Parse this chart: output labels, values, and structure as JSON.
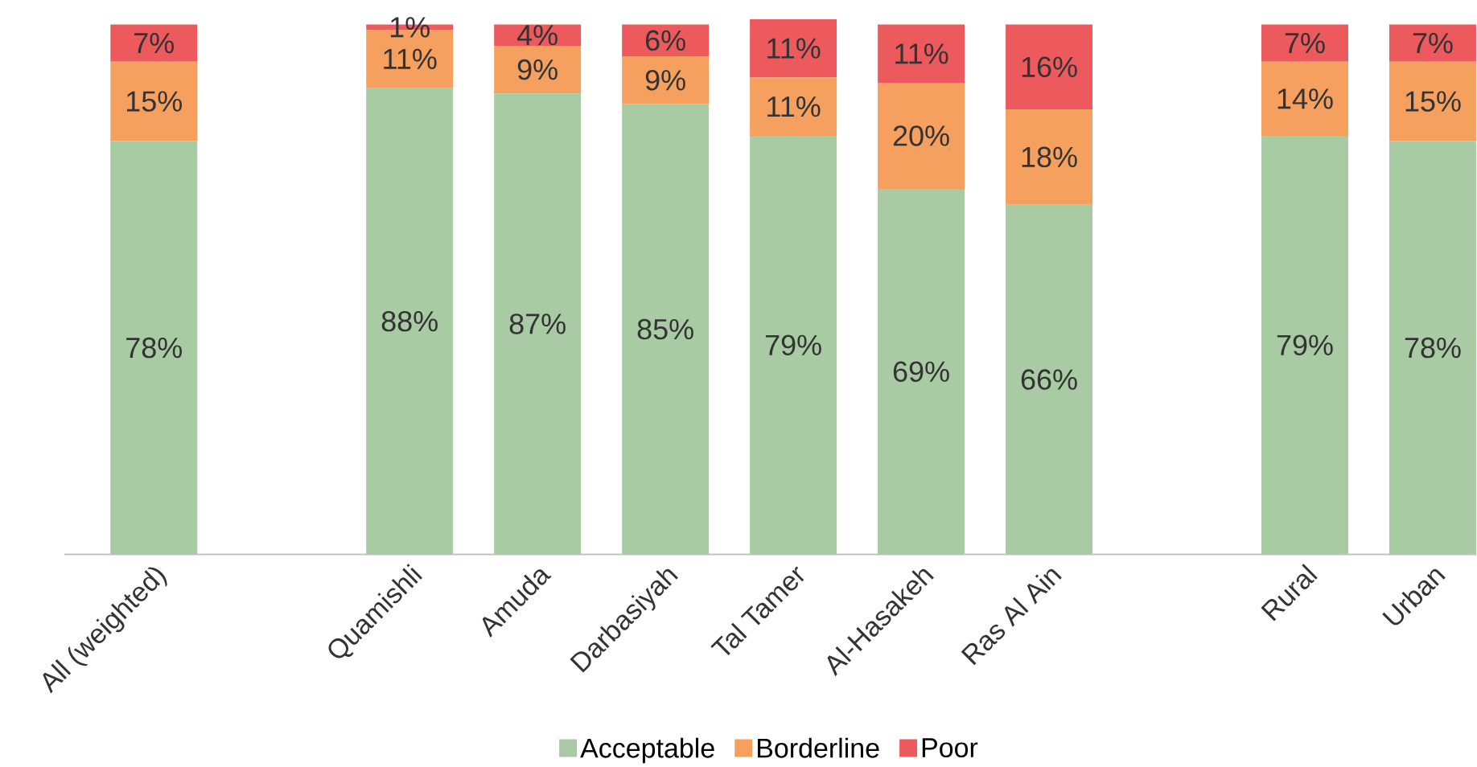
{
  "chart_data": {
    "type": "bar",
    "stacked": true,
    "legend": "bottom",
    "categories": [
      "All (weighted)",
      null,
      "Quamishli",
      "Amuda",
      "Darbasiyah",
      "Tal Tamer",
      "Al-Hasakeh",
      "Ras Al Ain",
      null,
      "Rural",
      "Urban"
    ],
    "series": [
      {
        "name": "Acceptable",
        "color": "#a9cba4",
        "values": [
          78,
          null,
          88,
          87,
          85,
          79,
          69,
          66,
          null,
          79,
          78
        ],
        "value_labels": [
          "78%",
          null,
          "88%",
          "87%",
          "85%",
          "79%",
          "69%",
          "66%",
          null,
          "79%",
          "78%"
        ]
      },
      {
        "name": "Borderline",
        "color": "#f5a05e",
        "values": [
          15,
          null,
          11,
          9,
          9,
          11,
          20,
          18,
          null,
          14,
          15
        ],
        "value_labels": [
          "15%",
          null,
          "11%",
          "9%",
          "9%",
          "11%",
          "20%",
          "18%",
          null,
          "14%",
          "15%"
        ]
      },
      {
        "name": "Poor",
        "color": "#ed5a5e",
        "values": [
          7,
          null,
          1,
          4,
          6,
          11,
          11,
          16,
          null,
          7,
          7
        ],
        "value_labels": [
          "7%",
          null,
          "1%",
          "4%",
          "6%",
          "11%",
          "11%",
          "16%",
          null,
          "7%",
          "7%"
        ]
      }
    ]
  }
}
